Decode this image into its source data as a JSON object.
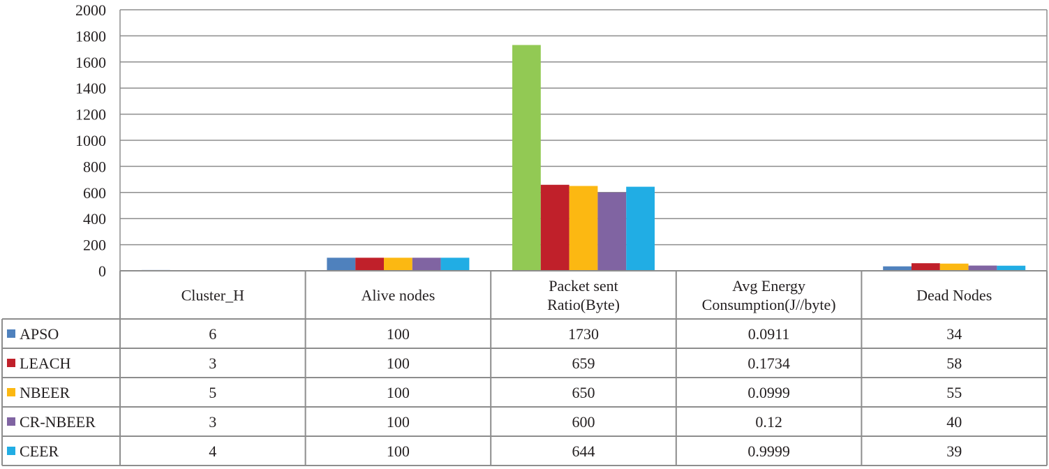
{
  "chart_data": {
    "type": "bar",
    "title": "",
    "xlabel": "",
    "ylabel": "",
    "ylim": [
      0,
      2000
    ],
    "yticks": [
      0,
      200,
      400,
      600,
      800,
      1000,
      1200,
      1400,
      1600,
      1800,
      2000
    ],
    "grid": true,
    "legend": "data-table-left",
    "categories": [
      [
        "Cluster_H"
      ],
      [
        "Alive nodes"
      ],
      [
        "Packet sent",
        "Ratio(Byte)"
      ],
      [
        "Avg Energy",
        "Consumption(J//byte)"
      ],
      [
        "Dead Nodes"
      ]
    ],
    "series": [
      {
        "name": "APSO",
        "color": "#4f81bd",
        "values": [
          6,
          100,
          1730,
          0.0911,
          34
        ]
      },
      {
        "name": "LEACH",
        "color": "#c0202a",
        "values": [
          3,
          100,
          659,
          0.1734,
          58
        ]
      },
      {
        "name": "NBEER",
        "color": "#fcb812",
        "values": [
          5,
          100,
          650,
          0.0999,
          55
        ]
      },
      {
        "name": "CR-NBEER",
        "color": "#8064a2",
        "values": [
          3,
          100,
          600,
          0.12,
          40
        ]
      },
      {
        "name": "CEER",
        "color": "#21ade4",
        "values": [
          4,
          100,
          644,
          0.9999,
          39
        ]
      }
    ],
    "highlight": {
      "category_index": 2,
      "series_index": 0,
      "color": "#92c954"
    },
    "table_values": [
      [
        "6",
        "100",
        "1730",
        "0.0911",
        "34"
      ],
      [
        "3",
        "100",
        "659",
        "0.1734",
        "58"
      ],
      [
        "5",
        "100",
        "650",
        "0.0999",
        "55"
      ],
      [
        "3",
        "100",
        "600",
        "0.12",
        "40"
      ],
      [
        "4",
        "100",
        "644",
        "0.9999",
        "39"
      ]
    ]
  }
}
